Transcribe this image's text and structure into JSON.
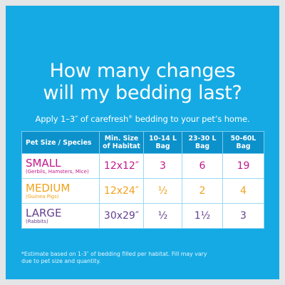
{
  "headline": {
    "line1": "How many changes",
    "line2": "will my bedding last?"
  },
  "intro": {
    "before": "Apply 1–3″ of carefresh",
    "mark": "®",
    "after": " bedding to your pet’s home."
  },
  "table": {
    "headers": {
      "species": "Pet Size / Species",
      "habitat": "Min. Size of Habitat",
      "bag1": "10-14 L Bag",
      "bag2": "23-30 L Bag",
      "bag3": "50-60L Bag"
    },
    "rows": [
      {
        "size": "SMALL",
        "species": "(Gerbils, Hamsters, Mice)",
        "habitat": "12x12″",
        "bag1": "3",
        "bag2": "6",
        "bag3": "19"
      },
      {
        "size": "MEDIUM",
        "species": "(Guinea Pigs)",
        "habitat": "12x24″",
        "bag1": "½",
        "bag2": "2",
        "bag3": "4"
      },
      {
        "size": "LARGE",
        "species": "(Rabbits)",
        "habitat": "30x29″",
        "bag1": "½",
        "bag2": "1½",
        "bag3": "3"
      }
    ]
  },
  "colors": {
    "background": "#15aae4",
    "header": "#0c91cb",
    "small": "#c2188a",
    "medium": "#f0a21c",
    "large": "#65408f"
  },
  "footnote": {
    "line1": "*Estimate based on 1-3″ of bedding filled per habitat. Fill may vary",
    "line2": "due to pet size and quantity."
  }
}
